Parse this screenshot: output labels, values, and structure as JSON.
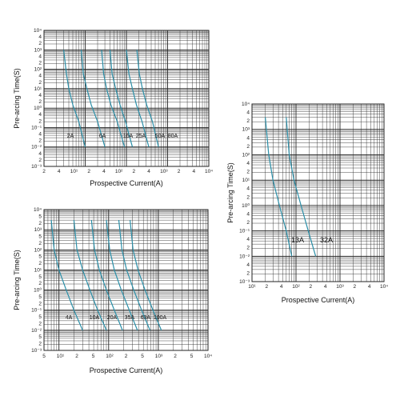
{
  "chart_data": [
    {
      "type": "line",
      "xlabel": "Prospective  Current(A)",
      "ylabel": "Pre-arcing Time(S)",
      "xscale": "log",
      "yscale": "log",
      "xlim": [
        1,
        10000
      ],
      "ylim": [
        0.001,
        10000
      ],
      "x_tick_labels": [
        "2",
        "4",
        "10¹",
        "2",
        "4",
        "10²",
        "2",
        "4",
        "10³",
        "2",
        "4",
        "10⁴"
      ],
      "y_tick_labels": [
        "10⁴",
        "4",
        "2",
        "10³",
        "4",
        "2",
        "10²",
        "4",
        "2",
        "10¹",
        "4",
        "2",
        "10⁰",
        "4",
        "2",
        "10⁻¹",
        "4",
        "2",
        "10⁻²",
        "4",
        "2",
        "10⁻³"
      ],
      "series": [
        {
          "name": "2A",
          "label": "2A",
          "x": [
            3.0,
            3.5,
            4.0,
            5.0,
            7.0,
            10.0
          ],
          "y": [
            1000,
            60,
            10,
            1.5,
            0.2,
            0.01
          ]
        },
        {
          "name": "6A",
          "label": "6A",
          "x": [
            8,
            9,
            11,
            14,
            20,
            30
          ],
          "y": [
            1000,
            60,
            10,
            1.5,
            0.2,
            0.01
          ]
        },
        {
          "name": "16A",
          "label": "16A",
          "x": [
            25,
            28,
            33,
            42,
            60,
            90
          ],
          "y": [
            1000,
            60,
            10,
            1.5,
            0.2,
            0.01
          ]
        },
        {
          "name": "25A",
          "label": "25A",
          "x": [
            40,
            45,
            55,
            70,
            95,
            140
          ],
          "y": [
            1000,
            60,
            10,
            1.5,
            0.2,
            0.01
          ]
        },
        {
          "name": "50A",
          "label": "50A",
          "x": [
            100,
            115,
            140,
            175,
            240,
            350
          ],
          "y": [
            1000,
            60,
            10,
            1.5,
            0.2,
            0.01
          ]
        },
        {
          "name": "80A",
          "label": "80A",
          "x": [
            180,
            205,
            245,
            310,
            430,
            600
          ],
          "y": [
            1000,
            60,
            10,
            1.5,
            0.2,
            0.01
          ]
        }
      ]
    },
    {
      "type": "line",
      "xlabel": "Prospective  Current(A)",
      "ylabel": "Pre-arcing Time(S)",
      "xscale": "log",
      "yscale": "log",
      "xlim": [
        10,
        10000
      ],
      "ylim": [
        0.001,
        10000
      ],
      "x_tick_labels": [
        "10¹",
        "2",
        "4",
        "10²",
        "2",
        "4",
        "10³",
        "2",
        "4",
        "10⁴"
      ],
      "y_tick_labels": [
        "10⁴",
        "4",
        "2",
        "10³",
        "4",
        "2",
        "10²",
        "4",
        "2",
        "10¹",
        "4",
        "2",
        "10⁰",
        "4",
        "2",
        "10⁻¹",
        "4",
        "2",
        "10⁻²",
        "4",
        "2",
        "10⁻³"
      ],
      "series": [
        {
          "name": "13A",
          "label": "13A",
          "x": [
            20,
            24,
            30,
            42,
            60,
            80
          ],
          "y": [
            3000,
            100,
            10,
            1,
            0.1,
            0.01
          ]
        },
        {
          "name": "32A",
          "label": "32A",
          "x": [
            60,
            70,
            90,
            130,
            190,
            280
          ],
          "y": [
            3000,
            100,
            10,
            1,
            0.1,
            0.01
          ]
        }
      ]
    },
    {
      "type": "line",
      "xlabel": "Prospective  Current(A)",
      "ylabel": "Pre-arcing Time(S)",
      "xscale": "log",
      "yscale": "log",
      "xlim": [
        5,
        10000
      ],
      "ylim": [
        0.001,
        10000
      ],
      "x_tick_labels": [
        "5",
        "10¹",
        "2",
        "5",
        "10²",
        "2",
        "5",
        "10³",
        "2",
        "5",
        "10⁴"
      ],
      "y_tick_labels": [
        "10⁴",
        "5",
        "2",
        "10³",
        "5",
        "2",
        "10²",
        "5",
        "2",
        "10¹",
        "5",
        "2",
        "10⁰",
        "5",
        "2",
        "10⁻¹",
        "5",
        "2",
        "10⁻²",
        "5",
        "2",
        "10⁻³"
      ],
      "series": [
        {
          "name": "4A",
          "label": "4A",
          "x": [
            7,
            8,
            10,
            14,
            20,
            30
          ],
          "y": [
            3000,
            100,
            10,
            1,
            0.1,
            0.01
          ]
        },
        {
          "name": "10A",
          "label": "10A",
          "x": [
            20,
            23,
            30,
            42,
            60,
            90
          ],
          "y": [
            3000,
            100,
            10,
            1,
            0.1,
            0.01
          ]
        },
        {
          "name": "20A",
          "label": "20A",
          "x": [
            45,
            52,
            65,
            90,
            130,
            190
          ],
          "y": [
            3000,
            100,
            10,
            1,
            0.1,
            0.01
          ]
        },
        {
          "name": "35A",
          "label": "35A",
          "x": [
            90,
            105,
            130,
            180,
            260,
            380
          ],
          "y": [
            3000,
            100,
            10,
            1,
            0.1,
            0.01
          ]
        },
        {
          "name": "63A",
          "label": "63A",
          "x": [
            160,
            185,
            230,
            320,
            460,
            680
          ],
          "y": [
            3000,
            100,
            10,
            1,
            0.1,
            0.01
          ]
        },
        {
          "name": "100A",
          "label": "100A",
          "x": [
            270,
            310,
            390,
            540,
            780,
            1150
          ],
          "y": [
            3000,
            100,
            10,
            1,
            0.1,
            0.01
          ]
        }
      ]
    }
  ]
}
